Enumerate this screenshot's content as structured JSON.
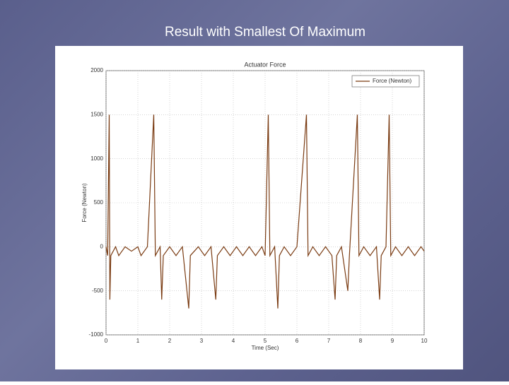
{
  "slide_title": "Result with Smallest Of Maximum",
  "chart_data": {
    "type": "line",
    "title": "Actuator Force",
    "x_label": "Time (Sec)",
    "y_label": "Force (Newton)",
    "x": [
      0,
      0.05,
      0.1,
      0.12,
      0.15,
      0.3,
      0.4,
      0.6,
      0.8,
      1.0,
      1.1,
      1.3,
      1.5,
      1.55,
      1.7,
      1.75,
      1.8,
      2.0,
      2.2,
      2.4,
      2.6,
      2.65,
      2.9,
      3.1,
      3.3,
      3.45,
      3.5,
      3.7,
      3.9,
      4.1,
      4.3,
      4.5,
      4.7,
      4.9,
      5.0,
      5.1,
      5.15,
      5.3,
      5.4,
      5.45,
      5.6,
      5.8,
      6.0,
      6.3,
      6.35,
      6.5,
      6.7,
      6.9,
      7.1,
      7.2,
      7.25,
      7.4,
      7.6,
      7.65,
      7.9,
      7.95,
      8.1,
      8.3,
      8.5,
      8.6,
      8.65,
      8.8,
      8.9,
      8.95,
      9.1,
      9.3,
      9.5,
      9.7,
      9.9,
      10
    ],
    "series": [
      {
        "name": "Force (Newton)",
        "color": "#7a3b12",
        "values": [
          0,
          -100,
          1500,
          -600,
          -100,
          0,
          -100,
          0,
          -50,
          0,
          -100,
          0,
          1500,
          -100,
          0,
          -600,
          -100,
          0,
          -100,
          0,
          -700,
          -100,
          0,
          -100,
          0,
          -600,
          -100,
          0,
          -100,
          0,
          -100,
          0,
          -100,
          0,
          -100,
          1500,
          -100,
          0,
          -700,
          -100,
          0,
          -100,
          0,
          1500,
          -100,
          0,
          -100,
          0,
          -100,
          -600,
          -100,
          0,
          -500,
          -100,
          1500,
          -100,
          0,
          -100,
          0,
          -600,
          -100,
          0,
          1500,
          -100,
          0,
          -100,
          0,
          -100,
          0,
          -50
        ]
      }
    ],
    "xlim": [
      0,
      10
    ],
    "xticks": [
      0,
      1,
      2,
      3,
      4,
      5,
      6,
      7,
      8,
      9,
      10
    ],
    "ylim": [
      -1000,
      2000
    ],
    "yticks": [
      -1000,
      -500,
      0,
      500,
      1000,
      1500,
      2000
    ],
    "grid": true,
    "legend": "upper right"
  }
}
